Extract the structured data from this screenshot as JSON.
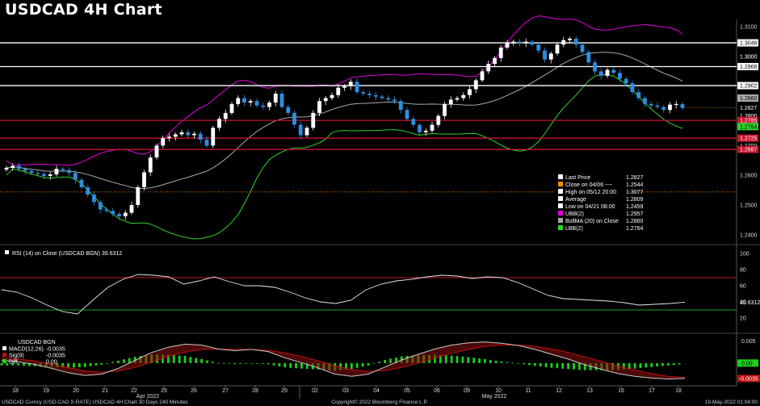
{
  "title": "USDCAD 4H Chart",
  "colors": {
    "background": "#000000",
    "up_candle": "#ffffff",
    "down_candle": "#2a8fe0",
    "ubb": "#e000e0",
    "bollma": "#a8a8a8",
    "lbb": "#2fd32f",
    "resistance": "#ffffff",
    "support": "#c8142f",
    "rsi_line": "#e8e8e8",
    "macd_line": "#ffffff",
    "signal_line": "#c01010",
    "diff_bar": "#1bd11b"
  },
  "chart_data": [
    {
      "type": "candlestick",
      "title": "USDCAD 4H Chart",
      "ylim": [
        1.2375,
        1.3125
      ],
      "y_ticks": [
        "1.3100",
        "1.3000",
        "1.2900",
        "1.2800",
        "1.2700",
        "1.2600",
        "1.2500",
        "1.2400"
      ],
      "x_ticks": [
        "18",
        "19",
        "20",
        "21",
        "22",
        "25",
        "26",
        "27",
        "28",
        "29",
        "02",
        "03",
        "04",
        "05",
        "06",
        "09",
        "10",
        "11",
        "12",
        "13",
        "16",
        "17",
        "18"
      ],
      "month_labels": [
        "Apr 2022",
        "May 2022"
      ],
      "close_series": [
        1.2625,
        1.2632,
        1.2622,
        1.2615,
        1.2608,
        1.2605,
        1.2598,
        1.2603,
        1.2622,
        1.2618,
        1.2608,
        1.2585,
        1.256,
        1.2535,
        1.251,
        1.2485,
        1.248,
        1.247,
        1.2462,
        1.2474,
        1.25,
        1.256,
        1.261,
        1.266,
        1.27,
        1.2725,
        1.273,
        1.2738,
        1.2745,
        1.2735,
        1.274,
        1.272,
        1.27,
        1.276,
        1.279,
        1.281,
        1.284,
        1.286,
        1.2845,
        1.285,
        1.2835,
        1.283,
        1.2845,
        1.2875,
        1.283,
        1.281,
        1.277,
        1.2735,
        1.276,
        1.281,
        1.285,
        1.286,
        1.287,
        1.2895,
        1.29,
        1.2915,
        1.288,
        1.2875,
        1.287,
        1.2865,
        1.286,
        1.2855,
        1.285,
        1.282,
        1.279,
        1.277,
        1.2745,
        1.275,
        1.277,
        1.28,
        1.284,
        1.2855,
        1.286,
        1.287,
        1.289,
        1.292,
        1.295,
        1.2975,
        1.2995,
        1.303,
        1.3045,
        1.305,
        1.3045,
        1.305,
        1.304,
        1.302,
        1.299,
        1.301,
        1.304,
        1.3055,
        1.306,
        1.304,
        1.3015,
        1.298,
        1.295,
        1.2935,
        1.2955,
        1.2945,
        1.2925,
        1.291,
        1.288,
        1.286,
        1.284,
        1.2835,
        1.283,
        1.282,
        1.2838,
        1.284,
        1.2827
      ],
      "resistance_levels": [
        "1.3046",
        "1.2966",
        "1.2902"
      ],
      "support_levels": [
        "1.2785",
        "1.2725",
        "1.2687"
      ],
      "right_labels": [
        {
          "text": "1.3046",
          "value": 1.3046,
          "bg": "#ffffff",
          "fg": "#000000"
        },
        {
          "text": "1.3000",
          "value": 1.3,
          "bg": "",
          "fg": "#dddddd"
        },
        {
          "text": "1.2966",
          "value": 1.2966,
          "bg": "#ffffff",
          "fg": "#000000"
        },
        {
          "text": "1.2902",
          "value": 1.2902,
          "bg": "#ffffff",
          "fg": "#000000"
        },
        {
          "text": "1.2860",
          "value": 1.286,
          "bg": "#a8a8a8",
          "fg": "#000000"
        },
        {
          "text": "1.2827",
          "value": 1.2827,
          "bg": "",
          "fg": "#ffffff"
        },
        {
          "text": "1.2800",
          "value": 1.28,
          "bg": "",
          "fg": "#dddddd"
        },
        {
          "text": "1.2785",
          "value": 1.2785,
          "bg": "#c8142f",
          "fg": "#ffffff"
        },
        {
          "text": "1.2764",
          "value": 1.2764,
          "bg": "#2fd32f",
          "fg": "#000000"
        },
        {
          "text": "1.2725",
          "value": 1.2725,
          "bg": "#c8142f",
          "fg": "#ffffff"
        },
        {
          "text": "1.2687",
          "value": 1.2687,
          "bg": "#c8142f",
          "fg": "#ffffff"
        }
      ],
      "legend": [
        {
          "label": "Last Price",
          "value": "1.2827",
          "color": "#ffffff"
        },
        {
          "label": "Close on 04/06 ----",
          "value": "1.2544",
          "color": "#ff8c00"
        },
        {
          "label": "High on 05/12 20:00",
          "value": "1.3077",
          "color": "#ffffff"
        },
        {
          "label": "Average",
          "value": "1.2809",
          "color": "#ffffff"
        },
        {
          "label": "Low on 04/21 08:00",
          "value": "1.2459",
          "color": "#ffffff"
        },
        {
          "label": "UBB(2)",
          "value": "1.2957",
          "color": "#e000e0"
        },
        {
          "label": "BollMA (20)  on Close",
          "value": "1.2860",
          "color": "#a8a8a8"
        },
        {
          "label": "LBB(2)",
          "value": "1.2764",
          "color": "#2fd32f"
        }
      ],
      "legend_placement": "bottom-right",
      "close_04_06": 1.2544,
      "last_price": 1.2827
    },
    {
      "type": "line",
      "title": "RSI (14)  on Close (USDCAD BGN) 39.6312",
      "ylim": [
        0,
        100
      ],
      "y_ticks": [
        "100",
        "80",
        "60",
        "40",
        "20"
      ],
      "overbought": 70,
      "oversold": 30,
      "last_value": "39.6312",
      "values": [
        55,
        52,
        45,
        36,
        28,
        25,
        42,
        58,
        68,
        74,
        73,
        71,
        62,
        66,
        71,
        65,
        60,
        60,
        58,
        52,
        45,
        40,
        38,
        42,
        55,
        62,
        66,
        68,
        71,
        73,
        72,
        69,
        71,
        70,
        64,
        56,
        48,
        44,
        43,
        42,
        41,
        39,
        36,
        37,
        38,
        39.6
      ]
    },
    {
      "type": "bar",
      "title": "USDCAD BGN",
      "ylim": [
        -0.0048,
        0.0062
      ],
      "y_ticks": [
        "0.005",
        "0.00",
        "-0.0035"
      ],
      "series": [
        {
          "name": "MACD(12,26)",
          "last_value": "-0.0035",
          "values": [
            0.0006,
            0.0003,
            -0.0003,
            -0.0012,
            -0.0022,
            -0.0028,
            -0.0025,
            -0.0012,
            0.0006,
            0.0024,
            0.0036,
            0.0043,
            0.0041,
            0.0032,
            0.0028,
            0.0031,
            0.0026,
            0.0012,
            0.0001,
            -0.0011,
            -0.0025,
            -0.003,
            -0.0025,
            -0.0009,
            0.0007,
            0.002,
            0.0032,
            0.0041,
            0.0046,
            0.0048,
            0.0045,
            0.004,
            0.0031,
            0.002,
            0.0009,
            -0.0004,
            -0.0014,
            -0.0024,
            -0.003,
            -0.0034,
            -0.0036,
            -0.0035
          ]
        },
        {
          "name": "Sig(9)",
          "last_value": "-0.0035",
          "values": [
            0.0012,
            0.0009,
            0.0005,
            -0.0002,
            -0.001,
            -0.0018,
            -0.0021,
            -0.0018,
            -0.001,
            0.0002,
            0.0015,
            0.0025,
            0.0031,
            0.0032,
            0.0031,
            0.0031,
            0.0029,
            0.0023,
            0.0015,
            0.0005,
            -0.0006,
            -0.0015,
            -0.0019,
            -0.0017,
            -0.001,
            0.0,
            0.0011,
            0.0022,
            0.0031,
            0.0038,
            0.0041,
            0.0041,
            0.0038,
            0.0032,
            0.0024,
            0.0014,
            0.0004,
            -0.0007,
            -0.0016,
            -0.0024,
            -0.003,
            -0.0033
          ]
        },
        {
          "name": "Diff",
          "last_value": "0.00"
        }
      ]
    }
  ],
  "footer": {
    "left": "USDCAD Curncy (USD-CAD X-RATE) USDCAD 4H Chart 30 Days 240 Minutes",
    "center": "Copyright© 2022 Bloomberg Finance L.P.",
    "right": "19-May-2022 01:04:00"
  }
}
